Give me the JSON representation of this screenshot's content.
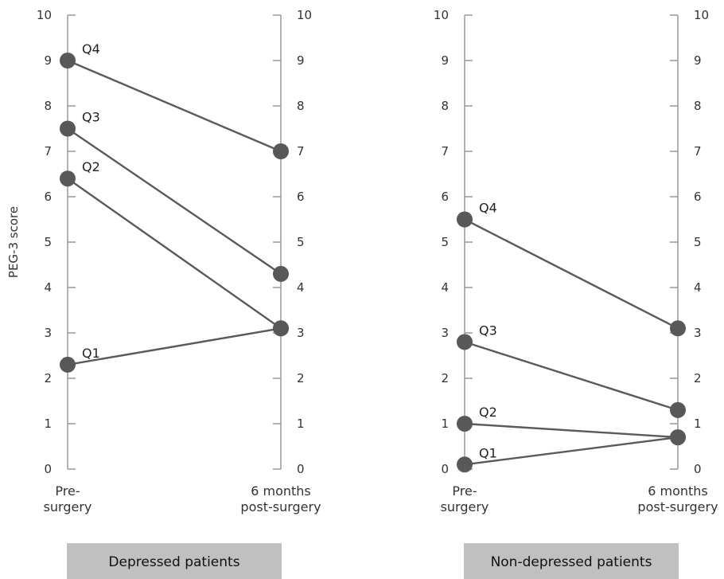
{
  "chart_data": {
    "type": "line",
    "ylabel": "PEG-3 score",
    "ylim": [
      0,
      10
    ],
    "ticks": [
      0,
      1,
      2,
      3,
      4,
      5,
      6,
      7,
      8,
      9,
      10
    ],
    "categories": [
      "Pre-\nsurgery",
      "6 months\npost-surgery"
    ],
    "colors": {
      "line": "#5a5a5a",
      "marker": "#585858",
      "axis": "#999999",
      "panel_box": "#c0c0c0"
    },
    "panels": [
      {
        "name": "Depressed patients",
        "series": [
          {
            "name": "Q4",
            "values": [
              9.0,
              7.0
            ]
          },
          {
            "name": "Q3",
            "values": [
              7.5,
              4.3
            ]
          },
          {
            "name": "Q2",
            "values": [
              6.4,
              3.1
            ]
          },
          {
            "name": "Q1",
            "values": [
              2.3,
              3.1
            ]
          }
        ]
      },
      {
        "name": "Non-depressed patients",
        "series": [
          {
            "name": "Q4",
            "values": [
              5.5,
              3.1
            ]
          },
          {
            "name": "Q3",
            "values": [
              2.8,
              1.3
            ]
          },
          {
            "name": "Q2",
            "values": [
              1.0,
              0.7
            ]
          },
          {
            "name": "Q1",
            "values": [
              0.1,
              0.7
            ]
          }
        ]
      }
    ]
  }
}
